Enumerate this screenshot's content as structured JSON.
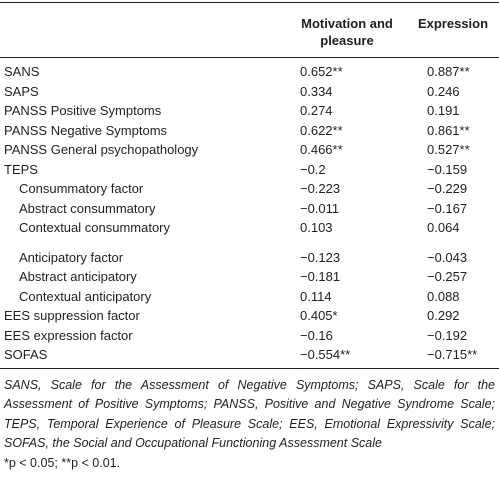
{
  "table": {
    "header": [
      "",
      "Motivation and pleasure",
      "Expression"
    ],
    "rows": [
      {
        "cells": [
          "SANS",
          "0.652**",
          "0.887**"
        ]
      },
      {
        "cells": [
          "SAPS",
          "0.334",
          "0.246"
        ]
      },
      {
        "cells": [
          "PANSS Positive Symptoms",
          "0.274",
          "0.191"
        ]
      },
      {
        "cells": [
          "PANSS Negative Symptoms",
          "0.622**",
          "0.861**"
        ]
      },
      {
        "cells": [
          "PANSS General psychopathology",
          "0.466**",
          "0.527**"
        ]
      },
      {
        "cells": [
          "TEPS",
          "−0.2",
          "−0.159"
        ]
      },
      {
        "cells": [
          "Consummatory factor",
          "−0.223",
          "−0.229"
        ],
        "indent": true
      },
      {
        "cells": [
          "Abstract consummatory",
          "−0.011",
          "−0.167"
        ],
        "indent": true
      },
      {
        "cells": [
          "Contextual consummatory",
          "0.103",
          "0.064"
        ],
        "indent": true
      },
      {
        "cells": [
          "Anticipatory factor",
          "−0.123",
          "−0.043"
        ],
        "indent": true,
        "gap": true
      },
      {
        "cells": [
          "Abstract anticipatory",
          "−0.181",
          "−0.257"
        ],
        "indent": true
      },
      {
        "cells": [
          "Contextual anticipatory",
          "0.114",
          "0.088"
        ],
        "indent": true
      },
      {
        "cells": [
          "EES suppression factor",
          "0.405*",
          "0.292"
        ]
      },
      {
        "cells": [
          "EES expression factor",
          "−0.16",
          "−0.192"
        ]
      },
      {
        "cells": [
          "SOFAS",
          "−0.554**",
          "−0.715**"
        ]
      }
    ],
    "footnote": "SANS, Scale for the Assessment of Negative Symptoms; SAPS, Scale for the Assessment of Positive Symptoms; PANSS, Positive and Negative Syndrome Scale; TEPS, Temporal Experience of Pleasure Scale; EES, Emotional Expressivity Scale; SOFAS, the Social and Occupational Functioning Assessment Scale",
    "significance": "*p < 0.05; **p < 0.01."
  }
}
